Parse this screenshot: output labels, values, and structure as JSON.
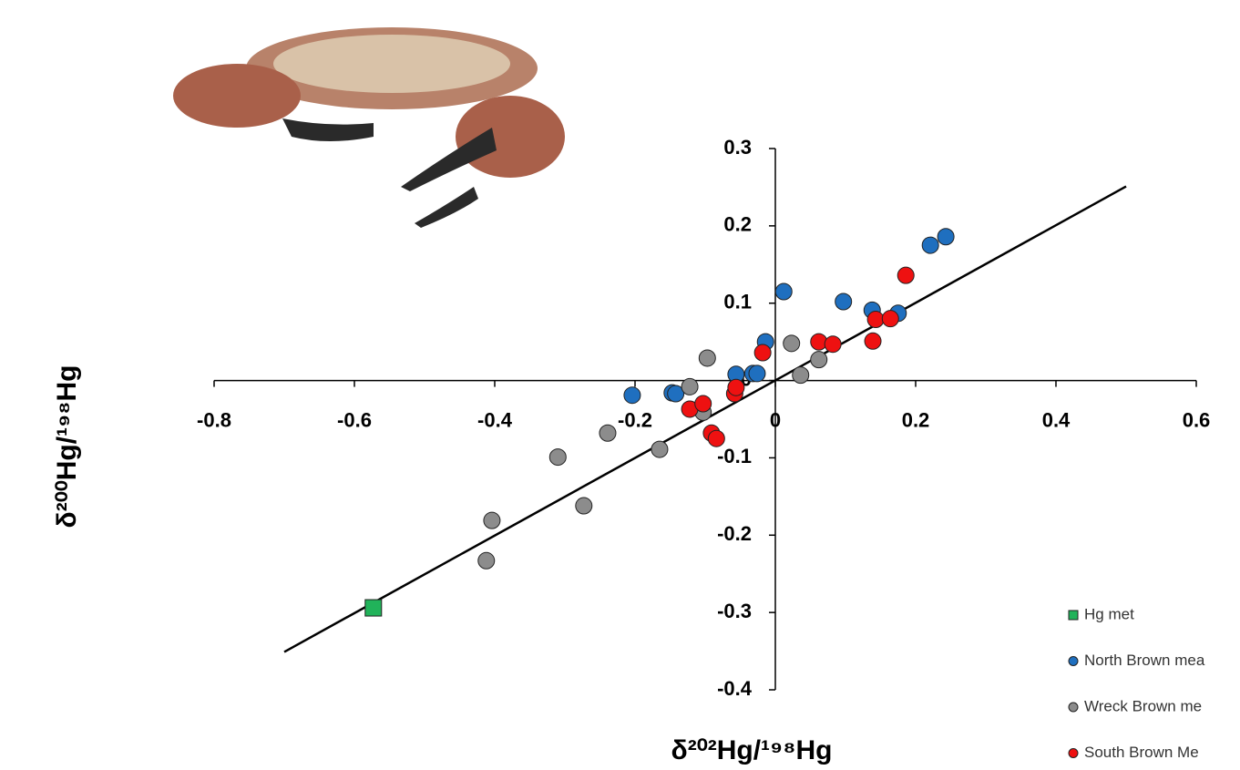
{
  "chart_data": {
    "type": "scatter",
    "xlabel": "δ²⁰²Hg/¹⁹⁸Hg",
    "ylabel": "δ²⁰⁰Hg/¹⁹⁸Hg",
    "xlim": [
      -0.8,
      0.6
    ],
    "xticks": [
      -0.8,
      -0.6,
      -0.4,
      -0.2,
      0,
      0.2,
      0.4,
      0.6
    ],
    "ylim": [
      -0.4,
      0.3
    ],
    "yticks": [
      -0.4,
      -0.3,
      -0.2,
      -0.1,
      0,
      0.1,
      0.2,
      0.3
    ],
    "legend": "bottom-right",
    "reference_line": {
      "color": "#000000",
      "x": [
        -0.7,
        0.5
      ],
      "y": [
        -0.351,
        0.251
      ]
    },
    "series": [
      {
        "name": "Hg met",
        "color": "#21b35a",
        "marker": "square",
        "x": [
          -0.573
        ],
        "values": [
          -0.294
        ]
      },
      {
        "name": "North Brown mea",
        "color": "#1f6fbf",
        "marker": "circle",
        "x": [
          -0.204,
          -0.147,
          -0.142,
          -0.056,
          -0.032,
          -0.026,
          -0.014,
          0.012,
          0.097,
          0.138,
          0.175,
          0.221,
          0.243
        ],
        "values": [
          -0.019,
          -0.016,
          -0.017,
          0.008,
          0.009,
          0.009,
          0.05,
          0.115,
          0.102,
          0.091,
          0.087,
          0.175,
          0.186
        ]
      },
      {
        "name": "Wreck Brown me",
        "color": "#8c8c8c",
        "marker": "circle",
        "x": [
          -0.412,
          -0.404,
          -0.31,
          -0.273,
          -0.239,
          -0.165,
          -0.122,
          -0.103,
          -0.097,
          0.023,
          0.036,
          0.062
        ],
        "values": [
          -0.233,
          -0.181,
          -0.099,
          -0.162,
          -0.068,
          -0.089,
          -0.008,
          -0.041,
          0.029,
          0.048,
          0.007,
          0.027
        ]
      },
      {
        "name": "South Brown Me",
        "color": "#ee1111",
        "marker": "circle",
        "x": [
          -0.122,
          -0.103,
          -0.091,
          -0.084,
          -0.058,
          -0.056,
          -0.018,
          0.062,
          0.082,
          0.139,
          0.143,
          0.164,
          0.186
        ],
        "values": [
          -0.037,
          -0.03,
          -0.068,
          -0.075,
          -0.017,
          -0.009,
          0.036,
          0.05,
          0.047,
          0.051,
          0.079,
          0.08,
          0.136
        ]
      }
    ]
  }
}
